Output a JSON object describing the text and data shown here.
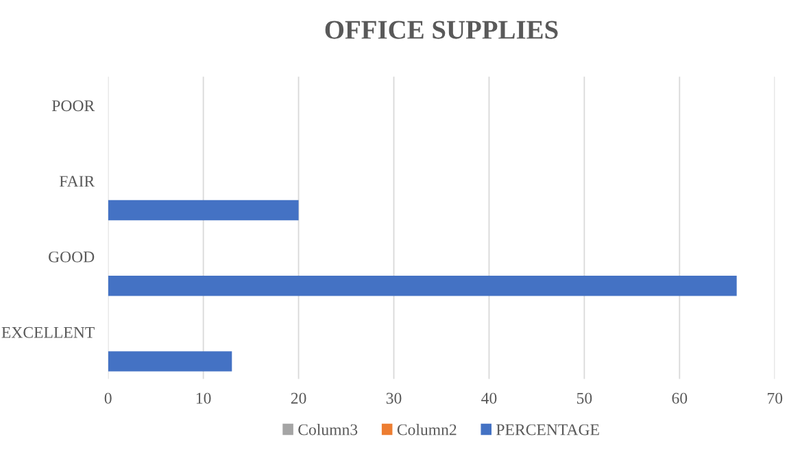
{
  "chart_data": {
    "type": "bar",
    "orientation": "horizontal",
    "title": "OFFICE SUPPLIES",
    "categories": [
      "POOR",
      "FAIR",
      "GOOD",
      "EXCELLENT"
    ],
    "series": [
      {
        "name": "PERCENTAGE",
        "color": "#4472c4",
        "values": [
          null,
          20,
          66,
          13
        ]
      },
      {
        "name": "Column2",
        "color": "#ed7d31",
        "values": [
          null,
          null,
          null,
          null
        ]
      },
      {
        "name": "Column3",
        "color": "#a5a5a5",
        "values": [
          null,
          null,
          null,
          null
        ]
      }
    ],
    "xlim": [
      0,
      70
    ],
    "xticks": [
      0,
      10,
      20,
      30,
      40,
      50,
      60,
      70
    ],
    "grid": "x",
    "legend": "bottom"
  }
}
